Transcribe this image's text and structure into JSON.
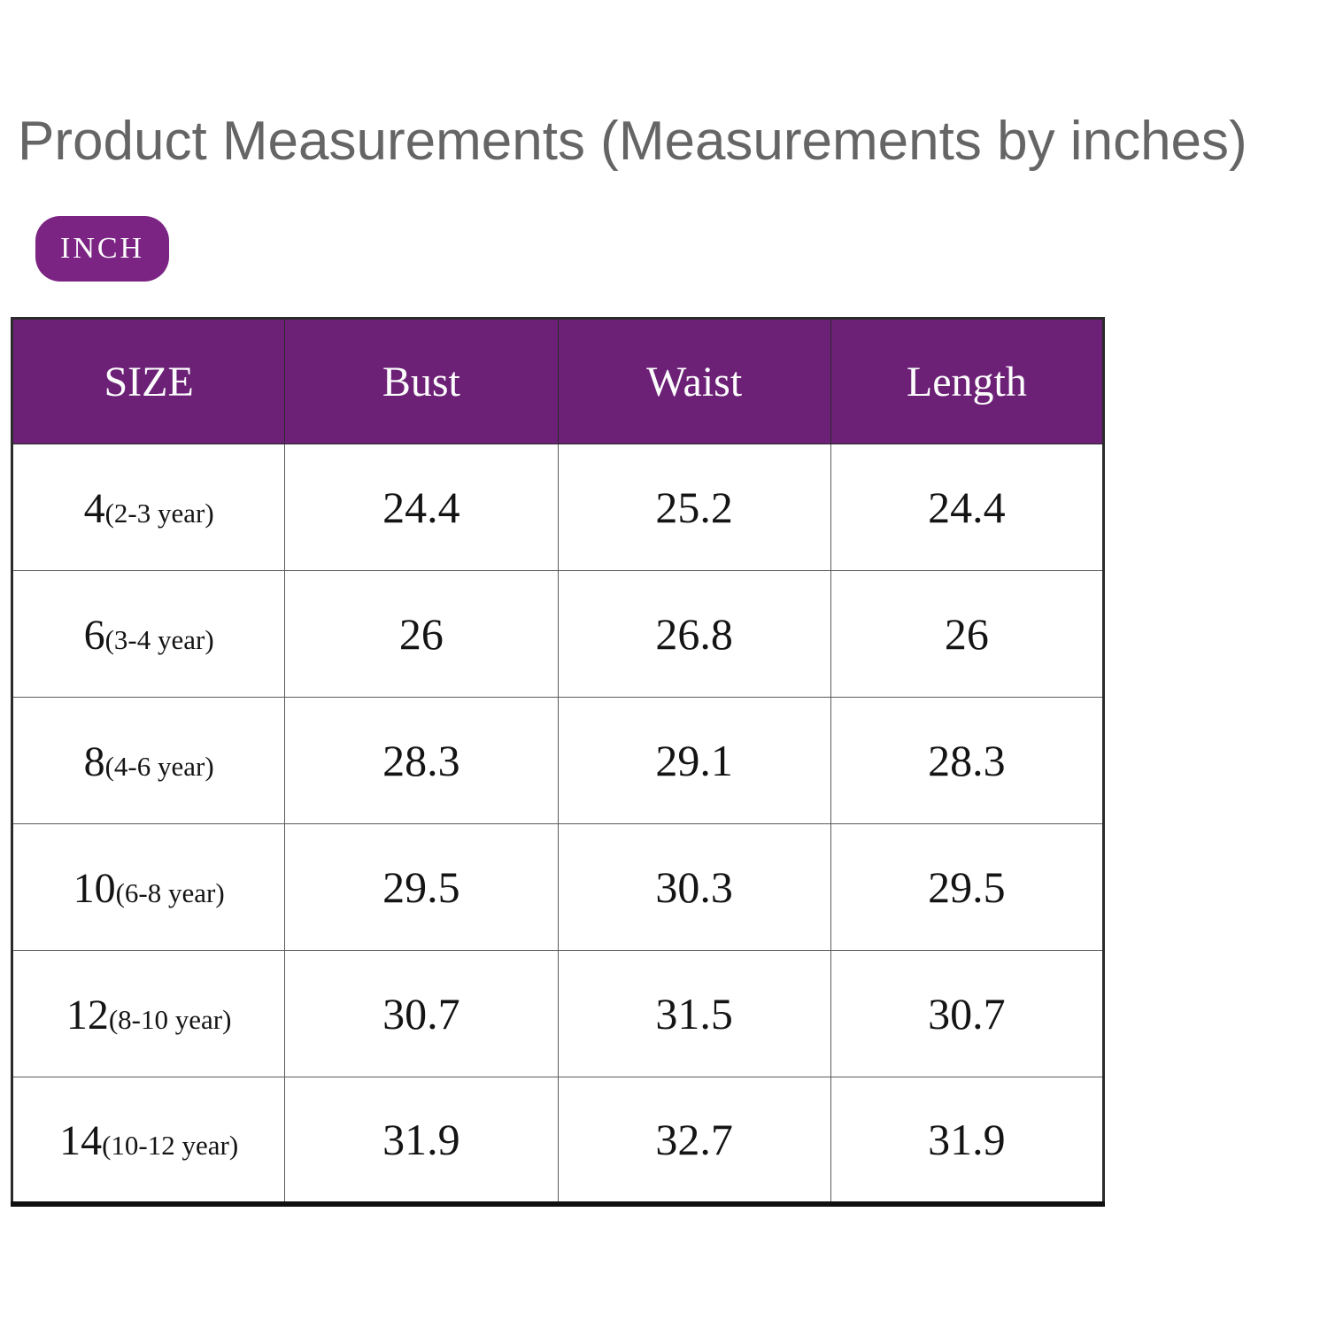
{
  "title": "Product Measurements (Measurements by inches)",
  "badge": {
    "label": "INCH"
  },
  "colors": {
    "title_text": "#656565",
    "header_bg": "#6C2177",
    "badge_bg": "#7B2483",
    "header_text": "#fdfdfd",
    "body_text": "#141414",
    "border_dark": "#2b2b2b",
    "border_mid": "#5a5a5a"
  },
  "table": {
    "columns": [
      "SIZE",
      "Bust",
      "Waist",
      "Length"
    ],
    "rows": [
      {
        "size": "4",
        "age": "(2-3 year)",
        "bust": "24.4",
        "waist": "25.2",
        "length": "24.4"
      },
      {
        "size": "6",
        "age": "(3-4 year)",
        "bust": "26",
        "waist": "26.8",
        "length": "26"
      },
      {
        "size": "8",
        "age": "(4-6 year)",
        "bust": "28.3",
        "waist": "29.1",
        "length": "28.3"
      },
      {
        "size": "10",
        "age": "(6-8 year)",
        "bust": "29.5",
        "waist": "30.3",
        "length": "29.5"
      },
      {
        "size": "12",
        "age": "(8-10 year)",
        "bust": "30.7",
        "waist": "31.5",
        "length": "30.7"
      },
      {
        "size": "14",
        "age": "(10-12 year)",
        "bust": "31.9",
        "waist": "32.7",
        "length": "31.9"
      }
    ]
  },
  "chart_data": {
    "type": "table",
    "title": "Product Measurements (Measurements by inches)",
    "unit_badge": "INCH",
    "columns": [
      "SIZE",
      "Bust",
      "Waist",
      "Length"
    ],
    "rows": [
      [
        "4(2-3 year)",
        24.4,
        25.2,
        24.4
      ],
      [
        "6(3-4 year)",
        26,
        26.8,
        26
      ],
      [
        "8(4-6 year)",
        28.3,
        29.1,
        28.3
      ],
      [
        "10(6-8 year)",
        29.5,
        30.3,
        29.5
      ],
      [
        "12(8-10 year)",
        30.7,
        31.5,
        30.7
      ],
      [
        "14(10-12 year)",
        31.9,
        32.7,
        31.9
      ]
    ]
  }
}
